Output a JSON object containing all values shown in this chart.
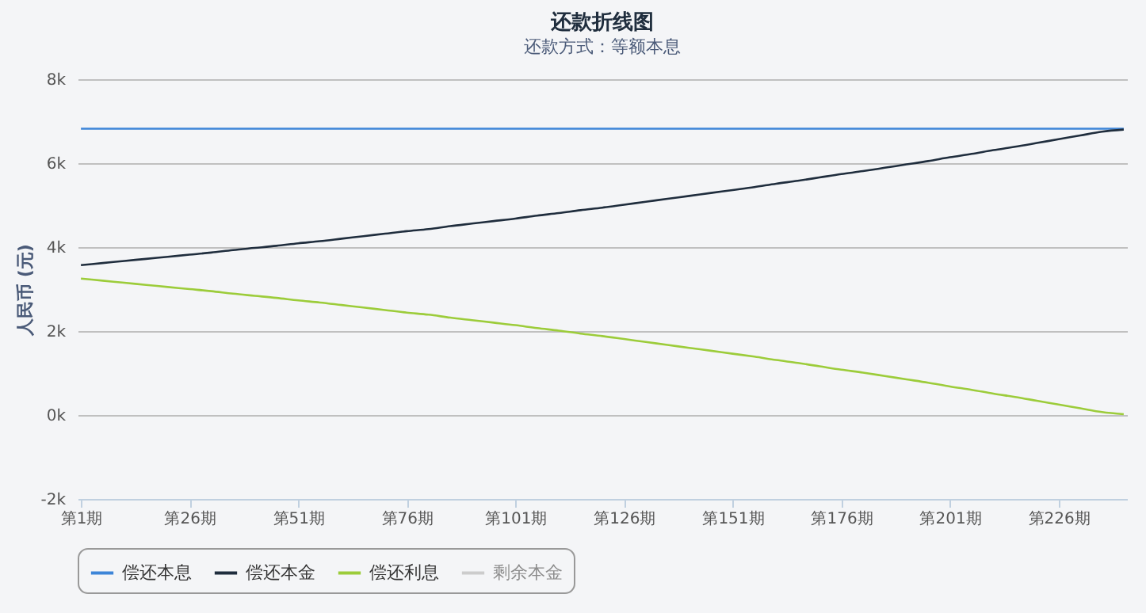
{
  "chart_data": {
    "type": "line",
    "title": "还款折线图",
    "subtitle": "还款方式：等额本息",
    "ylabel": "人民币 (元)",
    "categories": [
      "第1期",
      null,
      null,
      null,
      null,
      "第26期",
      null,
      null,
      null,
      null,
      "第51期",
      null,
      null,
      null,
      null,
      "第76期",
      null,
      null,
      null,
      null,
      "第101期",
      null,
      null,
      null,
      null,
      "第126期",
      null,
      null,
      null,
      null,
      "第151期",
      null,
      null,
      null,
      null,
      "第176期",
      null,
      null,
      null,
      null,
      "第201期",
      null,
      null,
      null,
      null,
      "第226期",
      null,
      null,
      null
    ],
    "ylim": [
      -2000,
      8000
    ],
    "yticks": [
      {
        "value": -2000,
        "label": "-2k"
      },
      {
        "value": 0,
        "label": "0k"
      },
      {
        "value": 2000,
        "label": "2k"
      },
      {
        "value": 4000,
        "label": "4k"
      },
      {
        "value": 6000,
        "label": "6k"
      },
      {
        "value": 8000,
        "label": "8k"
      }
    ],
    "series": [
      {
        "name": "偿还本息",
        "color": "#3d85d8",
        "values": [
          6820,
          6820,
          6820,
          6820,
          6820,
          6820,
          6820,
          6820,
          6820,
          6820,
          6820,
          6820,
          6820,
          6820,
          6820,
          6820,
          6820,
          6820,
          6820,
          6820,
          6820,
          6820,
          6820,
          6820,
          6820,
          6820,
          6820,
          6820,
          6820,
          6820,
          6820,
          6820,
          6820,
          6820,
          6820,
          6820,
          6820,
          6820,
          6820,
          6820,
          6820,
          6820,
          6820,
          6820,
          6820,
          6820,
          6820,
          6820,
          6820
        ]
      },
      {
        "name": "偿还本金",
        "color": "#1f2d3d",
        "values": [
          3570,
          3620,
          3670,
          3720,
          3770,
          3820,
          3870,
          3930,
          3980,
          4030,
          4090,
          4140,
          4200,
          4260,
          4320,
          4380,
          4430,
          4500,
          4560,
          4620,
          4680,
          4750,
          4810,
          4880,
          4940,
          5010,
          5080,
          5150,
          5220,
          5290,
          5360,
          5430,
          5510,
          5580,
          5660,
          5740,
          5810,
          5890,
          5970,
          6050,
          6140,
          6220,
          6310,
          6390,
          6480,
          6570,
          6660,
          6750,
          6800
        ]
      },
      {
        "name": "偿还利息",
        "color": "#9ccc3a",
        "values": [
          3250,
          3200,
          3150,
          3100,
          3050,
          3000,
          2950,
          2890,
          2840,
          2790,
          2730,
          2680,
          2620,
          2560,
          2500,
          2440,
          2390,
          2320,
          2260,
          2200,
          2140,
          2070,
          2010,
          1940,
          1880,
          1810,
          1740,
          1670,
          1600,
          1530,
          1460,
          1390,
          1310,
          1240,
          1160,
          1080,
          1010,
          930,
          850,
          770,
          680,
          600,
          510,
          430,
          340,
          250,
          160,
          70,
          20
        ]
      },
      {
        "name": "剩余本金",
        "color": "#cccccc",
        "values": [
          null,
          null,
          null,
          null,
          null,
          null,
          null,
          null,
          null,
          null,
          null,
          null,
          null,
          null,
          null,
          null,
          null,
          null,
          null,
          null,
          null,
          null,
          null,
          null,
          null,
          null,
          null,
          null,
          null,
          null,
          null,
          null,
          null,
          null,
          null,
          null,
          null,
          null,
          null,
          null,
          null,
          null,
          null,
          null,
          null,
          null,
          null,
          null,
          null
        ]
      }
    ],
    "grid": "y",
    "legend": "bottom",
    "marker": "none",
    "line_style": "solid"
  }
}
